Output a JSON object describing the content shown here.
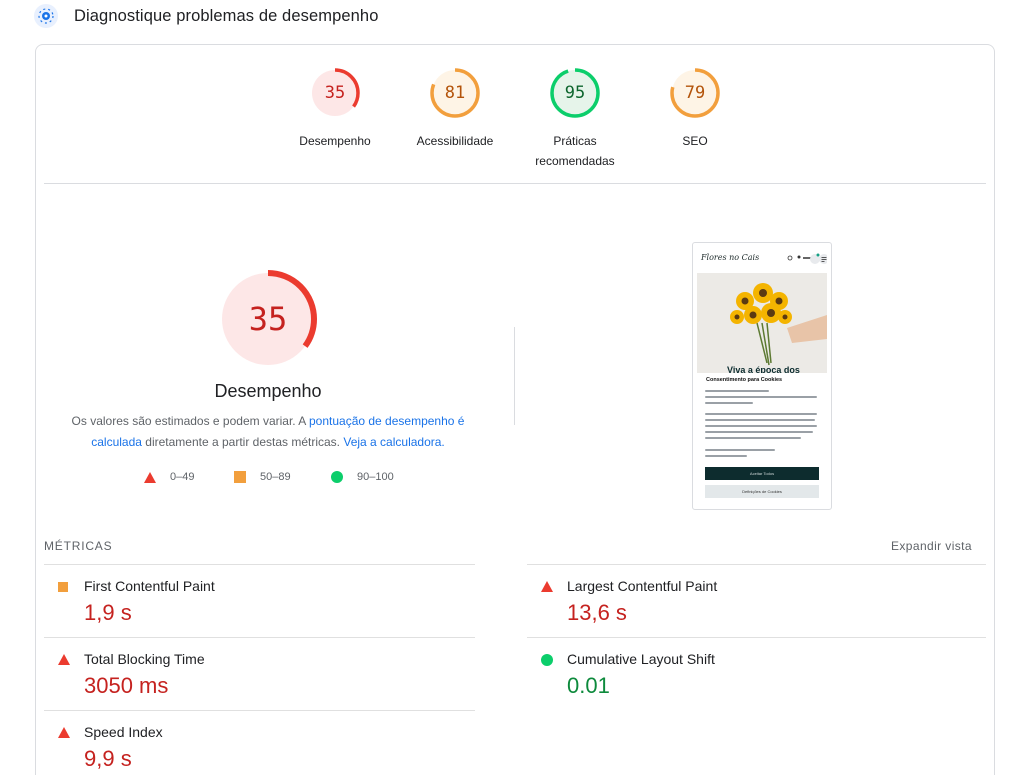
{
  "header": {
    "title": "Diagnostique problemas de desempenho",
    "icon": "lighthouse-icon"
  },
  "scores": [
    {
      "value": "35",
      "label": "Desempenho",
      "color": "#c5221f",
      "ring": "#eb3b2f",
      "bg": "#fde7e7",
      "fraction": 0.35
    },
    {
      "value": "81",
      "label": "Acessibilidade",
      "color": "#b3530a",
      "ring": "#f29f3d",
      "bg": "#fef4e6",
      "fraction": 0.81
    },
    {
      "value": "95",
      "label": "Práticas recomendadas",
      "color": "#0d652d",
      "ring": "#0cce6b",
      "bg": "#e6f4ea",
      "fraction": 0.95
    },
    {
      "value": "79",
      "label": "SEO",
      "color": "#b3530a",
      "ring": "#f29f3d",
      "bg": "#fef4e6",
      "fraction": 0.79
    }
  ],
  "performance": {
    "score": "35",
    "title": "Desempenho",
    "desc_prefix": "Os valores são estimados e podem variar. A ",
    "desc_link1": "pontuação de desempenho é calculada",
    "desc_middle": " diretamente a partir destas métricas. ",
    "desc_link2": "Veja a calculadora."
  },
  "legend": [
    {
      "range": "0–49",
      "icon": "triangle-red"
    },
    {
      "range": "50–89",
      "icon": "square-orange"
    },
    {
      "range": "90–100",
      "icon": "circle-green"
    }
  ],
  "screenshot": {
    "logo": "Flores no Cais",
    "hero_text": "Viva a época dos",
    "cookie_title": "Consentimento para Cookies",
    "accept_label": "Aceitar Todos",
    "settings_label": "Definições de Cookies"
  },
  "metrics": {
    "heading": "MÉTRICAS",
    "expand_label": "Expandir vista",
    "items": [
      {
        "label": "First Contentful Paint",
        "value": "1,9 s",
        "status": "average"
      },
      {
        "label": "Largest Contentful Paint",
        "value": "13,6 s",
        "status": "fail"
      },
      {
        "label": "Total Blocking Time",
        "value": "3050 ms",
        "status": "fail"
      },
      {
        "label": "Cumulative Layout Shift",
        "value": "0.01",
        "status": "pass"
      },
      {
        "label": "Speed Index",
        "value": "9,9 s",
        "status": "fail"
      }
    ]
  }
}
